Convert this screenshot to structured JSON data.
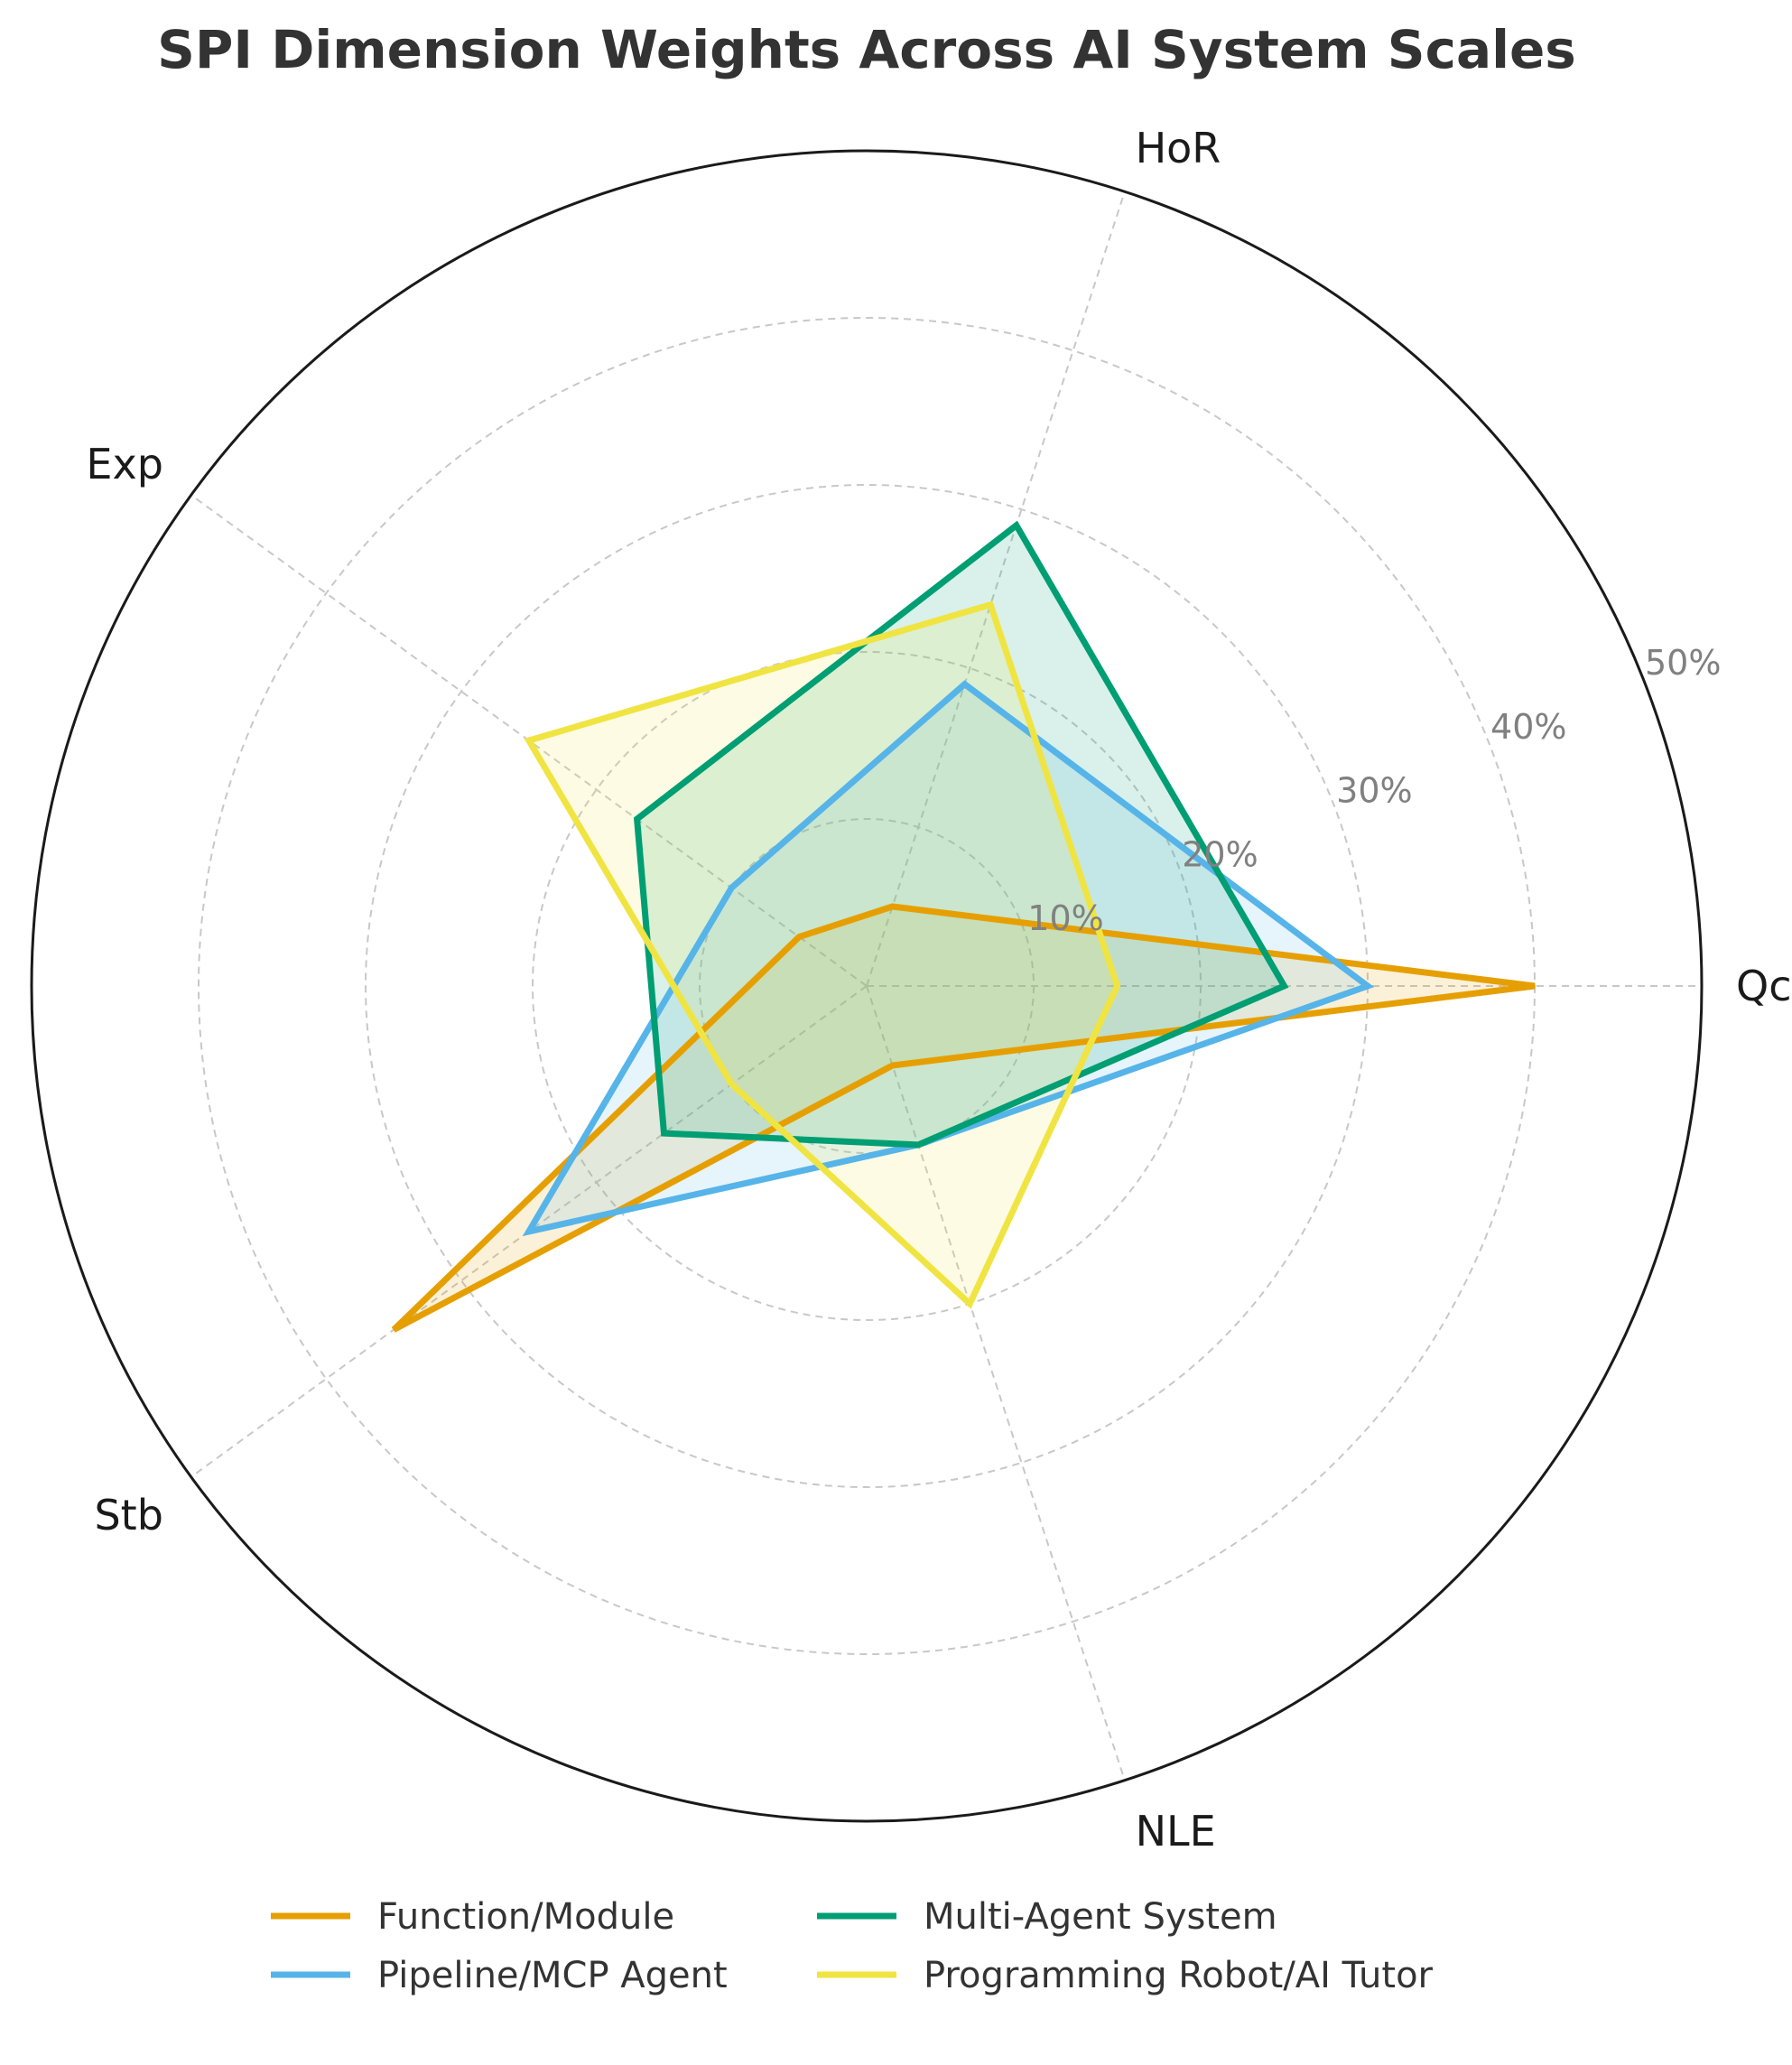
{
  "chart_data": {
    "type": "radar",
    "title": "SPI Dimension Weights Across AI System Scales",
    "axes": [
      "Qc",
      "HoR",
      "Exp",
      "Stb",
      "NLE"
    ],
    "radial_ticks": [
      "10%",
      "20%",
      "30%",
      "40%",
      "50%"
    ],
    "radial_tick_values": [
      10,
      20,
      30,
      40,
      50
    ],
    "rmax": 50,
    "grid": true,
    "legend_position": "bottom",
    "series": [
      {
        "name": "Function/Module",
        "color": "#E69F00",
        "values": [
          40,
          5,
          5,
          35,
          5
        ]
      },
      {
        "name": "Pipeline/MCP Agent",
        "color": "#56B4E9",
        "values": [
          30,
          19,
          10,
          25,
          10
        ]
      },
      {
        "name": "Multi-Agent System",
        "color": "#009E73",
        "values": [
          25,
          29,
          17,
          15,
          10
        ]
      },
      {
        "name": "Programming Robot/AI Tutor",
        "color": "#F0E442",
        "values": [
          15,
          24,
          25,
          10,
          20
        ]
      }
    ]
  }
}
